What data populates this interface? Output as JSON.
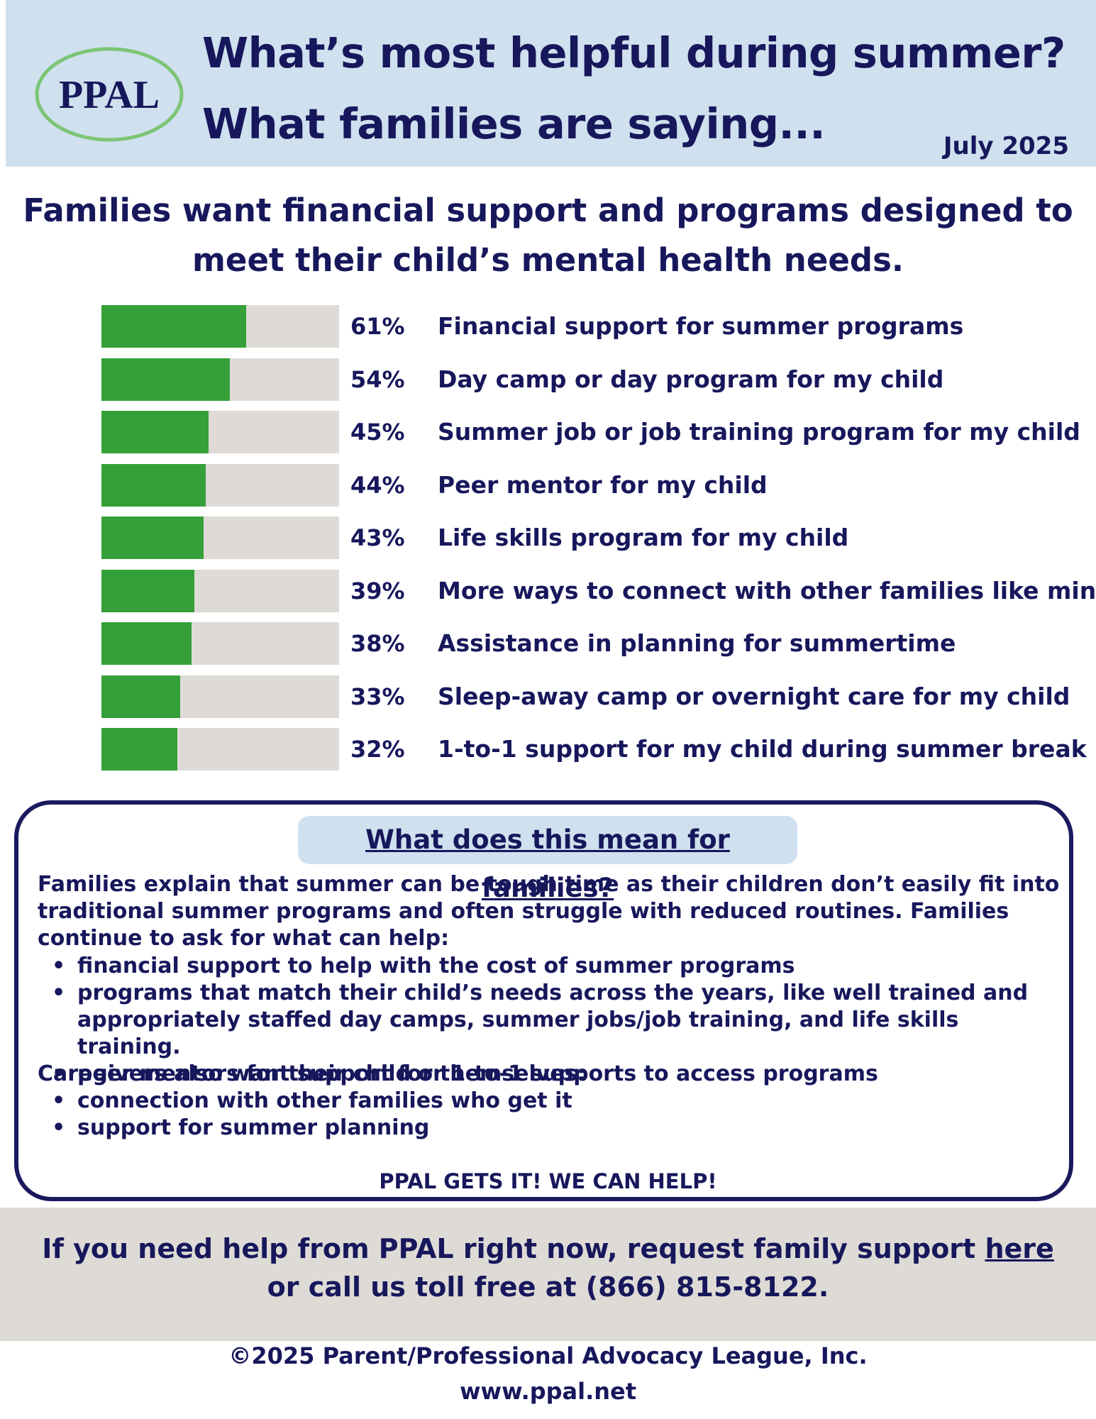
{
  "header": {
    "logo_text": "PPAL",
    "title_line1": "What’s most helpful during summer?",
    "title_line2": "What families are saying...",
    "date": "July 2025"
  },
  "subheadline": {
    "line1": "Families want financial support and programs designed to",
    "line2": "meet their child’s mental health needs."
  },
  "chart_data": {
    "type": "bar",
    "orientation": "horizontal",
    "categories": [
      "Financial support for summer programs",
      "Day camp or day program for my child",
      "Summer job or job training program for my child",
      "Peer mentor for my child",
      "Life skills program for my child",
      "More ways to connect with other families like mine",
      "Assistance in planning for summertime",
      "Sleep-away camp or overnight care for my child",
      "1-to-1 support for my child during summer break"
    ],
    "values": [
      61,
      54,
      45,
      44,
      43,
      39,
      38,
      33,
      32
    ],
    "value_labels": [
      "61%",
      "54%",
      "45%",
      "44%",
      "43%",
      "39%",
      "38%",
      "33%",
      "32%"
    ],
    "xlim": [
      0,
      100
    ],
    "colors": {
      "fill": "#35a03a",
      "track": "#dedbd6"
    }
  },
  "info": {
    "heading": "What does this mean for families? ",
    "intro": "Families explain that summer can be tough time as their children don’t easily fit into traditional summer programs and often struggle with reduced routines. Families continue to ask for what can help:",
    "bullets1": [
      "financial support to help with the cost of summer programs",
      "programs that match their child’s needs across the years, like well trained and appropriately staffed day camps, summer jobs/job training, and life skills training.",
      "peer mentors for their child or 1-to-1 supports to access programs"
    ],
    "caregivers": "Caregivers also want support for themselves:",
    "bullets2": [
      "connection with other families who get it",
      " support for summer planning"
    ],
    "cta": "PPAL GETS IT! WE CAN HELP!"
  },
  "help": {
    "line1_prefix": "If you need help from PPAL right now, request family support ",
    "link_text": "here",
    "line2": "or call us toll free at (866) 815-8122."
  },
  "footer": {
    "copyright": "©2025 Parent/Professional Advocacy League, Inc.",
    "website": "www.ppal.net"
  },
  "colors": {
    "navy": "#17175c",
    "header_band": "#cfe0ee",
    "gray_band": "#dedbd6",
    "bar_green": "#35a03a",
    "logo_ring": "#7cc576"
  }
}
